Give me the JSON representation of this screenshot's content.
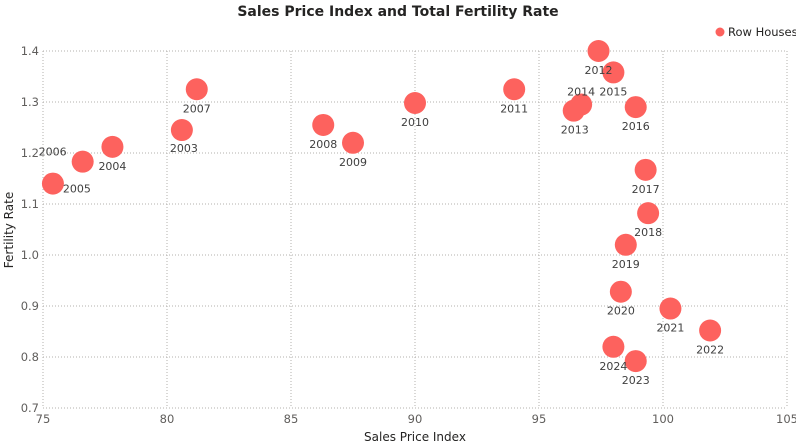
{
  "chart_data": {
    "type": "scatter",
    "title": "Sales Price Index and Total Fertility Rate",
    "xlabel": "Sales Price Index",
    "ylabel": "Fertility Rate",
    "xlim": [
      75,
      105
    ],
    "ylim": [
      0.7,
      1.4
    ],
    "x_ticks": [
      "75",
      "80",
      "85",
      "90",
      "95",
      "100",
      "105"
    ],
    "y_ticks": [
      "0.7",
      "0.8",
      "0.9",
      "1.0",
      "1.1",
      "1.2",
      "1.3",
      "1.4"
    ],
    "grid": true,
    "legend_position": "top-right",
    "color": "#fd625e",
    "series": [
      {
        "name": "Row Houses",
        "points": [
          {
            "label": "2003",
            "x": 80.6,
            "y": 1.245
          },
          {
            "label": "2004",
            "x": 77.8,
            "y": 1.212
          },
          {
            "label": "2005",
            "x": 75.4,
            "y": 1.14
          },
          {
            "label": "2006",
            "x": 76.6,
            "y": 1.183
          },
          {
            "label": "2007",
            "x": 81.2,
            "y": 1.325
          },
          {
            "label": "2008",
            "x": 86.3,
            "y": 1.255
          },
          {
            "label": "2009",
            "x": 87.5,
            "y": 1.22
          },
          {
            "label": "2010",
            "x": 90.0,
            "y": 1.298
          },
          {
            "label": "2011",
            "x": 94.0,
            "y": 1.325
          },
          {
            "label": "2012",
            "x": 97.4,
            "y": 1.4
          },
          {
            "label": "2013",
            "x": 96.4,
            "y": 1.283
          },
          {
            "label": "2014",
            "x": 96.7,
            "y": 1.295
          },
          {
            "label": "2015",
            "x": 98.0,
            "y": 1.358
          },
          {
            "label": "2016",
            "x": 98.9,
            "y": 1.29
          },
          {
            "label": "2017",
            "x": 99.3,
            "y": 1.167
          },
          {
            "label": "2018",
            "x": 99.4,
            "y": 1.082
          },
          {
            "label": "2019",
            "x": 98.5,
            "y": 1.02
          },
          {
            "label": "2020",
            "x": 98.3,
            "y": 0.928
          },
          {
            "label": "2021",
            "x": 100.3,
            "y": 0.895
          },
          {
            "label": "2022",
            "x": 101.9,
            "y": 0.852
          },
          {
            "label": "2023",
            "x": 98.9,
            "y": 0.792
          },
          {
            "label": "2024",
            "x": 98.0,
            "y": 0.82
          }
        ]
      }
    ]
  }
}
